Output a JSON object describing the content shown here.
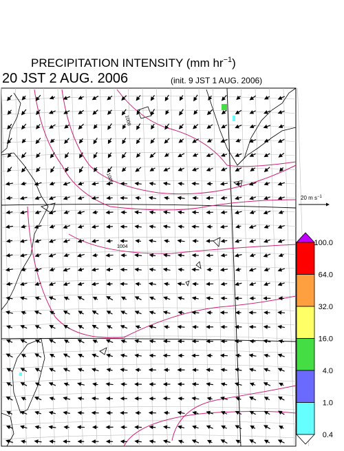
{
  "title": {
    "text": "PRECIPITATION INTENSITY (mm hr",
    "sup": "−1",
    "close": ")"
  },
  "valid_time": "20 JST 2 AUG. 2006",
  "init_time": "(init. 9 JST 1 AUG. 2006)",
  "wind_scale": {
    "text": "20 m s",
    "sup": "−1"
  },
  "isobar_labels": [
    "1008",
    "1006",
    "1004"
  ],
  "colorbar": {
    "labels": [
      "100.0",
      "64.0",
      "32.0",
      "16.0",
      "4.0",
      "1.0",
      "0.4"
    ],
    "colors": [
      "#ff0000",
      "#ffa040",
      "#ffff66",
      "#44dd44",
      "#6a6aff",
      "#66ffff"
    ],
    "over_color": "#c000ff",
    "under_color": "#ffffff"
  }
}
